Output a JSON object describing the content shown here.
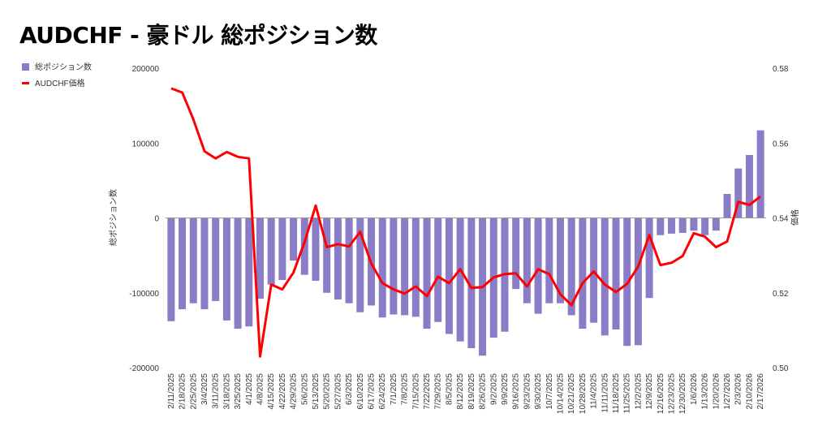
{
  "chart_data": {
    "type": "bar+line",
    "title": "AUDCHF - 豪ドル 総ポジション数",
    "xlabel": "",
    "ylabel": "総ポジション数",
    "y2label": "価格",
    "ylim": [
      -200000,
      200000
    ],
    "y2lim": [
      0.5,
      0.58
    ],
    "yticks": [
      "200000",
      "100000",
      "0",
      "-100000",
      "-200000"
    ],
    "y2ticks": [
      "0.58",
      "0.56",
      "0.54",
      "0.52",
      "0.50"
    ],
    "grid": false,
    "legend_position": "top-left",
    "categories": [
      "2/11/2025",
      "2/18/2025",
      "2/25/2025",
      "3/4/2025",
      "3/11/2025",
      "3/18/2025",
      "3/25/2025",
      "4/1/2025",
      "4/8/2025",
      "4/15/2025",
      "4/22/2025",
      "4/29/2025",
      "5/6/2025",
      "5/13/2025",
      "5/20/2025",
      "5/27/2025",
      "6/3/2025",
      "6/10/2025",
      "6/17/2025",
      "6/24/2025",
      "7/1/2025",
      "7/8/2025",
      "7/15/2025",
      "7/22/2025",
      "7/29/2025",
      "8/5/2025",
      "8/12/2025",
      "8/19/2025",
      "8/26/2025",
      "9/2/2025",
      "9/9/2025",
      "9/16/2025",
      "9/23/2025",
      "9/30/2025",
      "10/7/2025",
      "10/14/2025",
      "10/21/2025",
      "10/28/2025",
      "11/4/2025",
      "11/11/2025",
      "11/18/2025",
      "11/25/2025",
      "12/2/2025",
      "12/9/2025",
      "12/16/2025",
      "12/23/2025",
      "12/30/2025",
      "1/6/2026",
      "1/13/2026",
      "1/20/2026",
      "1/27/2026",
      "2/3/2026",
      "2/10/2026",
      "2/17/2026"
    ],
    "series": [
      {
        "name": "総ポジション数",
        "type": "bar",
        "axis": "left",
        "color": "#8b7cc8",
        "values": [
          -138000,
          -122000,
          -114000,
          -122000,
          -111000,
          -137000,
          -148000,
          -145000,
          -108000,
          -89000,
          -83000,
          -57000,
          -76000,
          -84000,
          -100000,
          -109000,
          -114000,
          -126000,
          -117000,
          -133000,
          -129000,
          -130000,
          -132000,
          -148000,
          -139000,
          -155000,
          -165000,
          -174000,
          -184000,
          -160000,
          -152000,
          -95000,
          -114000,
          -128000,
          -114000,
          -114000,
          -130000,
          -148000,
          -140000,
          -157000,
          -149000,
          -171000,
          -170000,
          -107000,
          -23000,
          -21000,
          -20000,
          -17000,
          -23000,
          -17000,
          32000,
          66000,
          84000,
          117000
        ]
      },
      {
        "name": "AUDCHF価格",
        "type": "line",
        "axis": "right",
        "color": "#ff0000",
        "values": [
          0.5746,
          0.5735,
          0.5663,
          0.5578,
          0.5559,
          0.5576,
          0.5563,
          0.5559,
          0.503,
          0.5222,
          0.5209,
          0.5254,
          0.5335,
          0.5433,
          0.5322,
          0.533,
          0.5324,
          0.5363,
          0.5278,
          0.5226,
          0.5209,
          0.5198,
          0.5217,
          0.5191,
          0.5243,
          0.5226,
          0.5263,
          0.5213,
          0.5215,
          0.5241,
          0.525,
          0.5252,
          0.5217,
          0.5263,
          0.525,
          0.5196,
          0.5167,
          0.5226,
          0.5257,
          0.5222,
          0.5202,
          0.5224,
          0.527,
          0.5354,
          0.5274,
          0.528,
          0.5298,
          0.5359,
          0.535,
          0.5322,
          0.5337,
          0.5443,
          0.5435,
          0.5457
        ]
      }
    ]
  }
}
